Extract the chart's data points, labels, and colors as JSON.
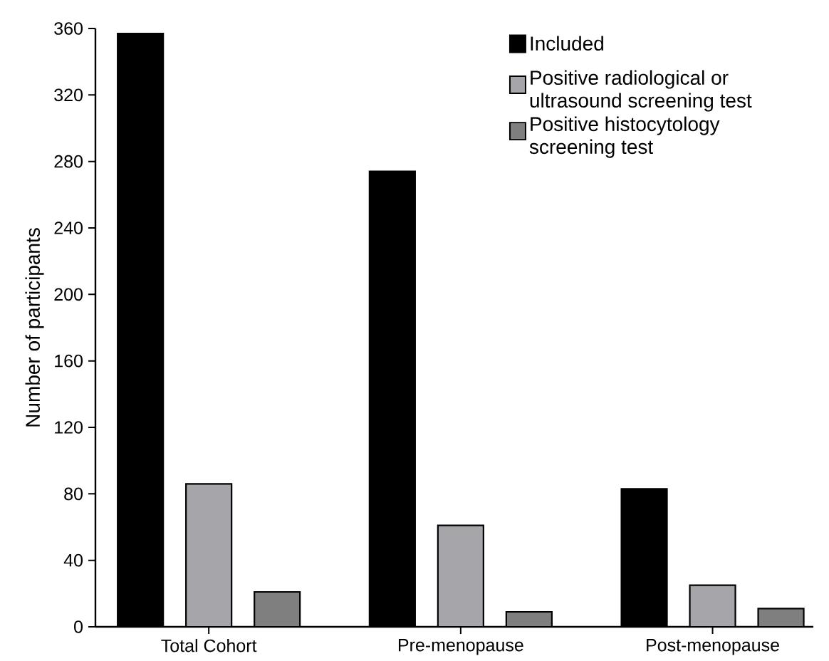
{
  "chart_data": {
    "type": "bar",
    "ylabel": "Number of participants",
    "categories": [
      "Total Cohort",
      "Pre-menopause",
      "Post-menopause"
    ],
    "series": [
      {
        "name": "Included",
        "color": "#000000",
        "values": [
          357,
          274,
          83
        ]
      },
      {
        "name": "Positive radiological or ultrasound screening test",
        "color": "#a6a6aa",
        "values": [
          86,
          61,
          25
        ]
      },
      {
        "name": "Positive histocytology screening test",
        "color": "#7f7f7f",
        "values": [
          21,
          9,
          11
        ]
      }
    ],
    "ylim": [
      0,
      360
    ],
    "yticks": [
      0,
      40,
      80,
      120,
      160,
      200,
      240,
      280,
      320,
      360
    ],
    "legend": "top right"
  }
}
